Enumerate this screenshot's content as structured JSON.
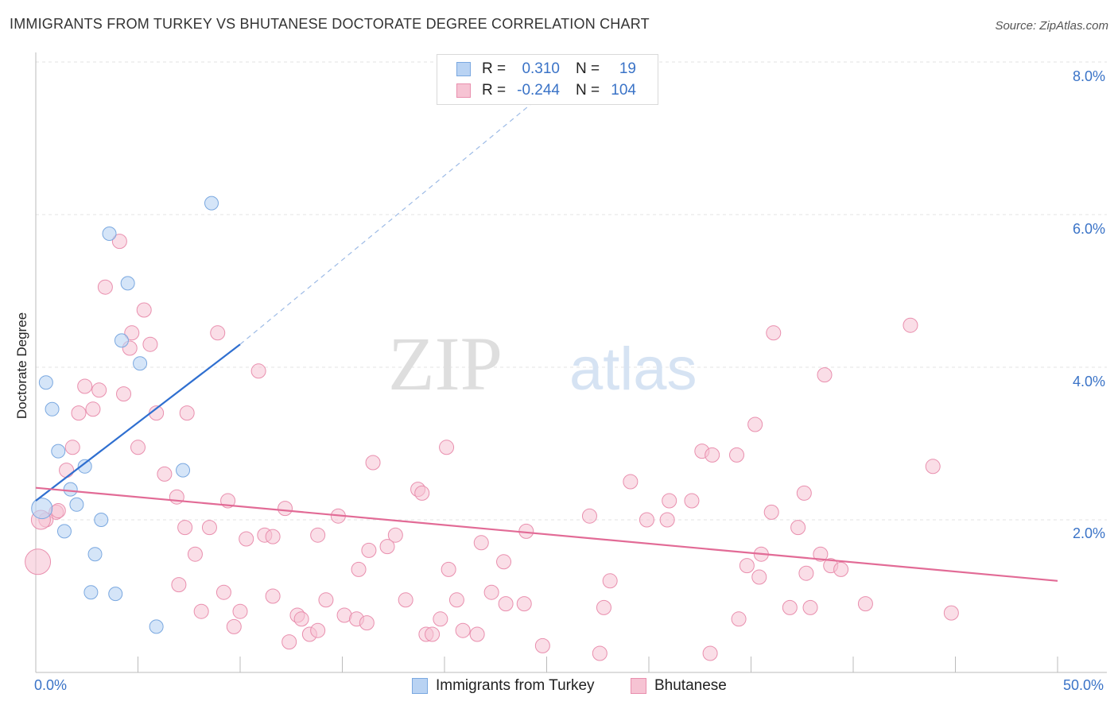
{
  "title": "IMMIGRANTS FROM TURKEY VS BHUTANESE DOCTORATE DEGREE CORRELATION CHART",
  "source": "Source: ZipAtlas.com",
  "watermark": {
    "zip": "ZIP",
    "atlas": "atlas"
  },
  "legend_top": {
    "rows": [
      {
        "r_label": "R =",
        "r_value": "0.310",
        "n_label": "N =",
        "n_value": "19"
      },
      {
        "r_label": "R =",
        "r_value": "-0.244",
        "n_label": "N =",
        "n_value": "104"
      }
    ]
  },
  "legend_bottom": {
    "series1": "Immigrants from Turkey",
    "series2": "Bhutanese"
  },
  "colors": {
    "blue_fill": "#b9d3f3",
    "blue_stroke": "#7aa8e0",
    "blue_line": "#2f6fd0",
    "pink_fill": "#f6c3d3",
    "pink_stroke": "#e98fae",
    "pink_line": "#e26b96",
    "grid": "#e3e3e3",
    "axis_text": "#3a73c7"
  },
  "chart_data": {
    "type": "scatter",
    "title": "IMMIGRANTS FROM TURKEY VS BHUTANESE DOCTORATE DEGREE CORRELATION CHART",
    "xlabel": "",
    "ylabel": "Doctorate Degree",
    "xlim": [
      0,
      50
    ],
    "ylim": [
      0,
      8.0
    ],
    "x_tick_labels": {
      "min": "0.0%",
      "max": "50.0%"
    },
    "y_ticks": [
      2.0,
      4.0,
      6.0,
      8.0
    ],
    "y_tick_labels": [
      "2.0%",
      "4.0%",
      "6.0%",
      "8.0%"
    ],
    "series": [
      {
        "name": "Immigrants from Turkey",
        "R": 0.31,
        "N": 19,
        "trend": {
          "x0": 0.0,
          "y0": 2.25,
          "x1": 10.0,
          "y1": 4.3,
          "dash_to_x": 26.5,
          "dash_to_y": 7.95
        },
        "points": [
          [
            8.6,
            6.15
          ],
          [
            3.6,
            5.75
          ],
          [
            4.5,
            5.1
          ],
          [
            4.2,
            4.35
          ],
          [
            5.1,
            4.05
          ],
          [
            0.5,
            3.8
          ],
          [
            0.8,
            3.45
          ],
          [
            1.1,
            2.9
          ],
          [
            2.4,
            2.7
          ],
          [
            7.2,
            2.65
          ],
          [
            1.7,
            2.4
          ],
          [
            2.0,
            2.2
          ],
          [
            3.2,
            2.0
          ],
          [
            1.4,
            1.85
          ],
          [
            2.9,
            1.55
          ],
          [
            2.7,
            1.05
          ],
          [
            3.9,
            1.03
          ],
          [
            5.9,
            0.6
          ],
          [
            0.3,
            2.15
          ]
        ],
        "sizes": [
          1,
          1,
          1,
          1,
          1,
          1,
          1,
          1,
          1,
          1,
          1,
          1,
          1,
          1,
          1,
          1,
          1,
          1,
          2
        ]
      },
      {
        "name": "Bhutanese",
        "R": -0.244,
        "N": 104,
        "trend": {
          "x0": 0.0,
          "y0": 2.42,
          "x1": 50.0,
          "y1": 1.2
        },
        "points": [
          [
            4.1,
            5.65
          ],
          [
            3.4,
            5.05
          ],
          [
            5.3,
            4.75
          ],
          [
            4.7,
            4.45
          ],
          [
            4.6,
            4.25
          ],
          [
            5.6,
            4.3
          ],
          [
            8.9,
            4.45
          ],
          [
            10.9,
            3.95
          ],
          [
            2.4,
            3.75
          ],
          [
            3.1,
            3.7
          ],
          [
            4.3,
            3.65
          ],
          [
            2.8,
            3.45
          ],
          [
            2.1,
            3.4
          ],
          [
            5.9,
            3.4
          ],
          [
            7.4,
            3.4
          ],
          [
            1.8,
            2.95
          ],
          [
            5.0,
            2.95
          ],
          [
            1.5,
            2.65
          ],
          [
            6.3,
            2.6
          ],
          [
            6.9,
            2.3
          ],
          [
            9.4,
            2.25
          ],
          [
            1.0,
            2.1
          ],
          [
            1.1,
            2.12
          ],
          [
            0.5,
            2.0
          ],
          [
            7.3,
            1.9
          ],
          [
            8.5,
            1.9
          ],
          [
            7.8,
            1.55
          ],
          [
            10.3,
            1.75
          ],
          [
            11.2,
            1.8
          ],
          [
            11.6,
            1.78
          ],
          [
            12.2,
            2.15
          ],
          [
            13.8,
            1.8
          ],
          [
            14.8,
            2.05
          ],
          [
            16.5,
            2.75
          ],
          [
            18.7,
            2.4
          ],
          [
            18.9,
            2.35
          ],
          [
            20.1,
            2.95
          ],
          [
            17.6,
            1.8
          ],
          [
            17.2,
            1.65
          ],
          [
            16.3,
            1.6
          ],
          [
            21.8,
            1.7
          ],
          [
            22.9,
            1.45
          ],
          [
            24.0,
            1.85
          ],
          [
            15.8,
            1.35
          ],
          [
            20.2,
            1.35
          ],
          [
            7.0,
            1.15
          ],
          [
            9.2,
            1.05
          ],
          [
            11.6,
            1.0
          ],
          [
            14.2,
            0.95
          ],
          [
            18.1,
            0.95
          ],
          [
            20.6,
            0.95
          ],
          [
            22.3,
            1.05
          ],
          [
            23.0,
            0.9
          ],
          [
            23.9,
            0.9
          ],
          [
            8.1,
            0.8
          ],
          [
            10.0,
            0.8
          ],
          [
            12.8,
            0.75
          ],
          [
            13.0,
            0.7
          ],
          [
            15.1,
            0.75
          ],
          [
            15.7,
            0.7
          ],
          [
            16.2,
            0.65
          ],
          [
            9.7,
            0.6
          ],
          [
            13.4,
            0.5
          ],
          [
            13.8,
            0.55
          ],
          [
            19.1,
            0.5
          ],
          [
            19.4,
            0.5
          ],
          [
            12.4,
            0.4
          ],
          [
            19.8,
            0.7
          ],
          [
            20.9,
            0.55
          ],
          [
            21.6,
            0.5
          ],
          [
            24.8,
            0.35
          ],
          [
            27.6,
            0.25
          ],
          [
            27.1,
            2.05
          ],
          [
            29.1,
            2.5
          ],
          [
            29.9,
            2.0
          ],
          [
            30.9,
            2.0
          ],
          [
            31.0,
            2.25
          ],
          [
            32.1,
            2.25
          ],
          [
            32.6,
            2.9
          ],
          [
            33.1,
            2.85
          ],
          [
            34.3,
            2.85
          ],
          [
            35.2,
            3.25
          ],
          [
            35.5,
            1.55
          ],
          [
            34.8,
            1.4
          ],
          [
            35.4,
            1.25
          ],
          [
            36.0,
            2.1
          ],
          [
            37.3,
            1.9
          ],
          [
            37.7,
            1.3
          ],
          [
            37.6,
            2.35
          ],
          [
            38.6,
            3.9
          ],
          [
            38.4,
            1.55
          ],
          [
            38.9,
            1.4
          ],
          [
            39.4,
            1.35
          ],
          [
            34.4,
            0.7
          ],
          [
            28.1,
            1.2
          ],
          [
            27.8,
            0.85
          ],
          [
            33.0,
            0.25
          ],
          [
            36.9,
            0.85
          ],
          [
            37.9,
            0.85
          ],
          [
            40.6,
            0.9
          ],
          [
            36.1,
            4.45
          ],
          [
            42.8,
            4.55
          ],
          [
            43.9,
            2.7
          ],
          [
            44.8,
            0.78
          ]
        ]
      }
    ]
  }
}
